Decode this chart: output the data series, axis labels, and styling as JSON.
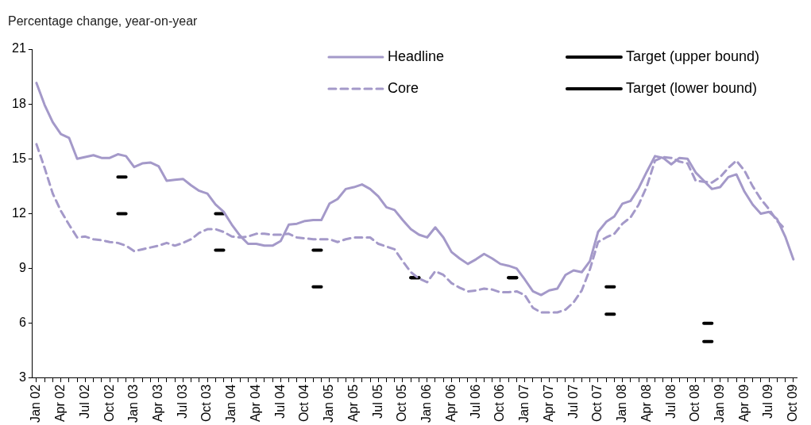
{
  "chart_data": {
    "type": "line",
    "ylabel": "Percentage change, year-on-year",
    "categories": [
      "Jan 02",
      null,
      null,
      "Apr 02",
      null,
      null,
      "Jul 02",
      null,
      null,
      "Oct 02",
      null,
      null,
      "Jan 03",
      null,
      null,
      "Apr 03",
      null,
      null,
      "Jul 03",
      null,
      null,
      "Oct 03",
      null,
      null,
      "Jan 04",
      null,
      null,
      "Apr 04",
      null,
      null,
      "Jul 04",
      null,
      null,
      "Oct 04",
      null,
      null,
      "Jan 05",
      null,
      null,
      "Apr 05",
      null,
      null,
      "Jul 05",
      null,
      null,
      "Oct 05",
      null,
      null,
      "Jan 06",
      null,
      null,
      "Apr 06",
      null,
      null,
      "Jul 06",
      null,
      null,
      "Oct 06",
      null,
      null,
      "Jan 07",
      null,
      null,
      "Apr 07",
      null,
      null,
      "Jul 07",
      null,
      null,
      "Oct 07",
      null,
      null,
      "Jan 08",
      null,
      null,
      "Apr 08",
      null,
      null,
      "Jul 08",
      null,
      null,
      "Oct 08",
      null,
      null,
      "Jan 09",
      null,
      null,
      "Apr 09",
      null,
      null,
      "Jul 09",
      null,
      null,
      "Oct 09"
    ],
    "series": [
      {
        "name": "Headline",
        "line_style": "solid",
        "color": "#a499c9",
        "values": [
          19.15,
          17.95,
          17.0,
          16.35,
          16.15,
          15.0,
          15.1,
          15.2,
          15.05,
          15.05,
          15.25,
          15.15,
          14.55,
          14.75,
          14.8,
          14.6,
          13.8,
          13.85,
          13.9,
          13.55,
          13.25,
          13.1,
          12.5,
          12.1,
          11.4,
          10.8,
          10.35,
          10.35,
          10.25,
          10.25,
          10.5,
          11.4,
          11.45,
          11.6,
          11.65,
          11.65,
          12.55,
          12.8,
          13.35,
          13.45,
          13.6,
          13.35,
          12.95,
          12.35,
          12.2,
          11.65,
          11.15,
          10.85,
          10.7,
          11.25,
          10.7,
          9.9,
          9.55,
          9.25,
          9.5,
          9.8,
          9.55,
          9.25,
          9.15,
          9.0,
          8.4,
          7.75,
          7.55,
          7.8,
          7.9,
          8.65,
          8.9,
          8.8,
          9.4,
          11.0,
          11.55,
          11.85,
          12.55,
          12.7,
          13.4,
          14.3,
          15.15,
          15.05,
          14.7,
          15.05,
          15.0,
          14.25,
          13.8,
          13.35,
          13.45,
          14.0,
          14.15,
          13.2,
          12.5,
          12.0,
          12.1,
          11.7,
          10.75,
          9.5
        ]
      },
      {
        "name": "Core",
        "line_style": "dashed",
        "color": "#a499c9",
        "values": [
          15.8,
          14.5,
          13.1,
          12.15,
          11.4,
          10.7,
          10.75,
          10.6,
          10.55,
          10.45,
          10.4,
          10.25,
          9.95,
          10.05,
          10.15,
          10.25,
          10.4,
          10.25,
          10.4,
          10.6,
          10.95,
          11.15,
          11.15,
          11.0,
          10.75,
          10.7,
          10.75,
          10.9,
          10.9,
          10.85,
          10.85,
          10.9,
          10.7,
          10.65,
          10.6,
          10.6,
          10.6,
          10.45,
          10.6,
          10.7,
          10.7,
          10.7,
          10.35,
          10.2,
          10.05,
          9.4,
          8.8,
          8.45,
          8.25,
          8.85,
          8.65,
          8.2,
          7.95,
          7.75,
          7.8,
          7.9,
          7.85,
          7.7,
          7.7,
          7.75,
          7.55,
          6.85,
          6.6,
          6.6,
          6.6,
          6.75,
          7.15,
          7.8,
          8.95,
          10.45,
          10.7,
          10.9,
          11.45,
          11.8,
          12.5,
          13.5,
          14.9,
          15.1,
          15.05,
          14.85,
          14.75,
          13.8,
          13.75,
          13.7,
          14.0,
          14.5,
          14.9,
          14.35,
          13.5,
          12.8,
          12.25,
          11.6,
          11.15,
          null
        ]
      },
      {
        "name": "Target (upper bound)",
        "line_style": "solid",
        "color": "#000000",
        "values": [
          null,
          null,
          null,
          null,
          null,
          null,
          null,
          null,
          null,
          null,
          14,
          14,
          null,
          null,
          null,
          null,
          null,
          null,
          null,
          null,
          null,
          null,
          12,
          12,
          null,
          null,
          null,
          null,
          null,
          null,
          null,
          null,
          null,
          null,
          10,
          10,
          null,
          null,
          null,
          null,
          null,
          null,
          null,
          null,
          null,
          null,
          8.5,
          8.5,
          null,
          null,
          null,
          null,
          null,
          null,
          null,
          null,
          null,
          null,
          8.5,
          8.5,
          null,
          null,
          null,
          null,
          null,
          null,
          null,
          null,
          null,
          null,
          8,
          8,
          null,
          null,
          null,
          null,
          null,
          null,
          null,
          null,
          null,
          null,
          6,
          6,
          null,
          null,
          null,
          null,
          null,
          null,
          null,
          null,
          null,
          null
        ]
      },
      {
        "name": "Target (lower bound)",
        "line_style": "solid",
        "color": "#000000",
        "values": [
          null,
          null,
          null,
          null,
          null,
          null,
          null,
          null,
          null,
          null,
          12,
          12,
          null,
          null,
          null,
          null,
          null,
          null,
          null,
          null,
          null,
          null,
          10,
          10,
          null,
          null,
          null,
          null,
          null,
          null,
          null,
          null,
          null,
          null,
          8,
          8,
          null,
          null,
          null,
          null,
          null,
          null,
          null,
          null,
          null,
          null,
          8.5,
          8.5,
          null,
          null,
          null,
          null,
          null,
          null,
          null,
          null,
          null,
          null,
          8.5,
          8.5,
          null,
          null,
          null,
          null,
          null,
          null,
          null,
          null,
          null,
          null,
          6.5,
          6.5,
          null,
          null,
          null,
          null,
          null,
          null,
          null,
          null,
          null,
          null,
          5,
          5,
          null,
          null,
          null,
          null,
          null,
          null,
          null,
          null,
          null,
          null
        ]
      }
    ],
    "ylim": [
      3,
      21
    ],
    "yticks": [
      3,
      6,
      9,
      12,
      15,
      18,
      21
    ],
    "legend": "top right"
  }
}
